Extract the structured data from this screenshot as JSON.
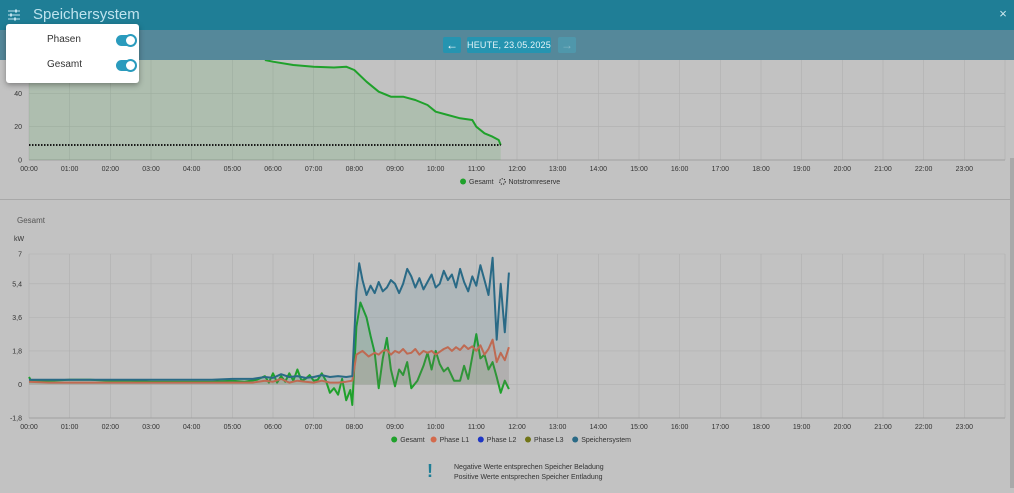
{
  "window": {
    "title": "Speichersystem",
    "close_symbol": "×"
  },
  "nav": {
    "prev_symbol": "←",
    "next_symbol": "→",
    "date_label": "HEUTE, 23.05.2025"
  },
  "popup": {
    "items": [
      {
        "label": "Phasen",
        "checked": true
      },
      {
        "label": "Gesamt",
        "checked": true
      }
    ]
  },
  "colors": {
    "accent": "#1f7e96",
    "gesamt": "#1fa12b",
    "phase_l1": "#d46a4c",
    "phase_l2": "#1d35c4",
    "phase_l3": "#717517",
    "speichersystem": "#2a6a86",
    "toggle": "#2a9bbd"
  },
  "section2": {
    "title": "Gesamt",
    "unit": "kW"
  },
  "info": {
    "icon": "!",
    "line1": "Negative Werte entsprechen Speicher Beladung",
    "line2": "Positive Werte entsprechen Speicher Entladung"
  },
  "chart_data": [
    {
      "type": "area",
      "x_ticks": [
        "00:00",
        "01:00",
        "02:00",
        "03:00",
        "04:00",
        "05:00",
        "06:00",
        "07:00",
        "08:00",
        "09:00",
        "10:00",
        "11:00",
        "12:00",
        "13:00",
        "14:00",
        "15:00",
        "16:00",
        "17:00",
        "18:00",
        "19:00",
        "20:00",
        "21:00",
        "22:00",
        "23:00"
      ],
      "y_ticks": [
        0,
        20,
        40
      ],
      "ylim": [
        0,
        60
      ],
      "grid": true,
      "legend_position": "bottom-center",
      "series": [
        {
          "name": "Gesamt",
          "style": "area-line",
          "points": [
            [
              5.8,
              60
            ],
            [
              6.0,
              59
            ],
            [
              6.5,
              57
            ],
            [
              7.0,
              56
            ],
            [
              7.5,
              55.5
            ],
            [
              7.8,
              56
            ],
            [
              8.0,
              54
            ],
            [
              8.3,
              47
            ],
            [
              8.6,
              41
            ],
            [
              8.9,
              38
            ],
            [
              9.2,
              38
            ],
            [
              9.5,
              36
            ],
            [
              9.8,
              33
            ],
            [
              10.0,
              29
            ],
            [
              10.3,
              27
            ],
            [
              10.6,
              25
            ],
            [
              10.9,
              24
            ],
            [
              11.0,
              20
            ],
            [
              11.2,
              16
            ],
            [
              11.4,
              14
            ],
            [
              11.55,
              12
            ],
            [
              11.6,
              9
            ]
          ]
        },
        {
          "name": "Notstromreserve",
          "style": "dotted",
          "points": [
            [
              0,
              9
            ],
            [
              11.6,
              9
            ]
          ]
        }
      ],
      "area_baseline_fill_from": 0
    },
    {
      "type": "line",
      "x_ticks": [
        "00:00",
        "01:00",
        "02:00",
        "03:00",
        "04:00",
        "05:00",
        "06:00",
        "07:00",
        "08:00",
        "09:00",
        "10:00",
        "11:00",
        "12:00",
        "13:00",
        "14:00",
        "15:00",
        "16:00",
        "17:00",
        "18:00",
        "19:00",
        "20:00",
        "21:00",
        "22:00",
        "23:00"
      ],
      "y_ticks": [
        "-1,8",
        "0",
        "1,8",
        "3,6",
        "5,4",
        "7"
      ],
      "y_tick_values": [
        -1.8,
        0,
        1.8,
        3.6,
        5.4,
        7
      ],
      "ylim": [
        -1.8,
        7
      ],
      "grid": true,
      "legend_position": "bottom-center",
      "series": [
        {
          "name": "Gesamt",
          "points": [
            [
              0,
              0.4
            ],
            [
              0.05,
              0.2
            ],
            [
              0.5,
              0.2
            ],
            [
              1.0,
              0.25
            ],
            [
              1.5,
              0.25
            ],
            [
              2.0,
              0.2
            ],
            [
              2.5,
              0.2
            ],
            [
              3.0,
              0.15
            ],
            [
              3.5,
              0.15
            ],
            [
              4.0,
              0.15
            ],
            [
              4.5,
              0.15
            ],
            [
              5.0,
              0.2
            ],
            [
              5.3,
              0.15
            ],
            [
              5.6,
              0.25
            ],
            [
              5.8,
              0.45
            ],
            [
              5.9,
              0.1
            ],
            [
              6.0,
              0.6
            ],
            [
              6.1,
              0.1
            ],
            [
              6.2,
              0.45
            ],
            [
              6.3,
              0.15
            ],
            [
              6.4,
              0.6
            ],
            [
              6.5,
              0.2
            ],
            [
              6.6,
              0.8
            ],
            [
              6.7,
              0.2
            ],
            [
              6.8,
              0.3
            ],
            [
              6.9,
              0.5
            ],
            [
              7.0,
              0.2
            ],
            [
              7.1,
              0.25
            ],
            [
              7.2,
              0.6
            ],
            [
              7.3,
              0.2
            ],
            [
              7.4,
              -0.45
            ],
            [
              7.5,
              -0.2
            ],
            [
              7.6,
              -0.55
            ],
            [
              7.7,
              0.3
            ],
            [
              7.8,
              -0.85
            ],
            [
              7.9,
              -0.3
            ],
            [
              7.95,
              -1.1
            ],
            [
              8.05,
              3.1
            ],
            [
              8.15,
              4.4
            ],
            [
              8.3,
              3.6
            ],
            [
              8.4,
              2.6
            ],
            [
              8.5,
              1.7
            ],
            [
              8.6,
              -0.2
            ],
            [
              8.7,
              1.4
            ],
            [
              8.8,
              2.5
            ],
            [
              8.9,
              0.8
            ],
            [
              9.0,
              -0.1
            ],
            [
              9.1,
              0.8
            ],
            [
              9.2,
              0.5
            ],
            [
              9.3,
              1.2
            ],
            [
              9.4,
              -0.2
            ],
            [
              9.55,
              0.2
            ],
            [
              9.7,
              1.0
            ],
            [
              9.8,
              1.7
            ],
            [
              9.9,
              0.8
            ],
            [
              10.0,
              1.8
            ],
            [
              10.1,
              1.1
            ],
            [
              10.2,
              0.7
            ],
            [
              10.3,
              0.9
            ],
            [
              10.45,
              0.2
            ],
            [
              10.6,
              0.2
            ],
            [
              10.7,
              1.0
            ],
            [
              10.8,
              0.3
            ],
            [
              10.9,
              1.5
            ],
            [
              11.0,
              2.7
            ],
            [
              11.1,
              1.4
            ],
            [
              11.2,
              1.6
            ],
            [
              11.3,
              0.8
            ],
            [
              11.4,
              1.2
            ],
            [
              11.5,
              0.4
            ],
            [
              11.6,
              -0.45
            ],
            [
              11.7,
              0.2
            ],
            [
              11.8,
              -0.25
            ]
          ]
        },
        {
          "name": "Phase L1",
          "points": [
            [
              0,
              0.15
            ],
            [
              0.5,
              0.1
            ],
            [
              1.0,
              0.1
            ],
            [
              1.5,
              0.1
            ],
            [
              2.0,
              0.1
            ],
            [
              2.5,
              0.1
            ],
            [
              3.0,
              0.1
            ],
            [
              3.5,
              0.1
            ],
            [
              4.0,
              0.1
            ],
            [
              4.5,
              0.1
            ],
            [
              5.0,
              0.1
            ],
            [
              5.5,
              0.1
            ],
            [
              5.8,
              0.2
            ],
            [
              6.0,
              0.15
            ],
            [
              6.2,
              0.3
            ],
            [
              6.4,
              0.1
            ],
            [
              6.6,
              0.2
            ],
            [
              6.8,
              0.15
            ],
            [
              7.0,
              0.1
            ],
            [
              7.2,
              0.2
            ],
            [
              7.4,
              0.1
            ],
            [
              7.6,
              0.1
            ],
            [
              7.8,
              0.15
            ],
            [
              7.95,
              0.2
            ],
            [
              8.05,
              1.6
            ],
            [
              8.2,
              1.8
            ],
            [
              8.35,
              1.5
            ],
            [
              8.5,
              1.7
            ],
            [
              8.6,
              1.6
            ],
            [
              8.7,
              1.8
            ],
            [
              8.8,
              1.85
            ],
            [
              8.9,
              1.6
            ],
            [
              9.0,
              1.8
            ],
            [
              9.1,
              1.7
            ],
            [
              9.2,
              1.9
            ],
            [
              9.3,
              1.65
            ],
            [
              9.4,
              1.7
            ],
            [
              9.5,
              1.9
            ],
            [
              9.6,
              1.6
            ],
            [
              9.7,
              1.8
            ],
            [
              9.8,
              1.7
            ],
            [
              9.9,
              1.8
            ],
            [
              10.0,
              1.6
            ],
            [
              10.1,
              1.75
            ],
            [
              10.2,
              1.9
            ],
            [
              10.3,
              2.0
            ],
            [
              10.4,
              1.8
            ],
            [
              10.5,
              2.0
            ],
            [
              10.6,
              1.85
            ],
            [
              10.7,
              2.1
            ],
            [
              10.8,
              1.9
            ],
            [
              10.9,
              2.05
            ],
            [
              11.0,
              1.8
            ],
            [
              11.1,
              2.1
            ],
            [
              11.2,
              1.6
            ],
            [
              11.3,
              1.9
            ],
            [
              11.4,
              2.4
            ],
            [
              11.5,
              1.2
            ],
            [
              11.6,
              1.7
            ],
            [
              11.7,
              1.3
            ],
            [
              11.8,
              2.0
            ]
          ]
        },
        {
          "name": "Phase L2",
          "points": []
        },
        {
          "name": "Phase L3",
          "points": []
        },
        {
          "name": "Speichersystem",
          "points": [
            [
              0,
              0.25
            ],
            [
              0.5,
              0.25
            ],
            [
              1.0,
              0.25
            ],
            [
              1.5,
              0.25
            ],
            [
              2.0,
              0.25
            ],
            [
              2.5,
              0.25
            ],
            [
              3.0,
              0.25
            ],
            [
              3.5,
              0.25
            ],
            [
              4.0,
              0.25
            ],
            [
              4.5,
              0.25
            ],
            [
              5.0,
              0.3
            ],
            [
              5.5,
              0.3
            ],
            [
              5.8,
              0.4
            ],
            [
              6.0,
              0.35
            ],
            [
              6.2,
              0.55
            ],
            [
              6.4,
              0.4
            ],
            [
              6.6,
              0.45
            ],
            [
              6.8,
              0.35
            ],
            [
              7.0,
              0.4
            ],
            [
              7.2,
              0.5
            ],
            [
              7.4,
              0.4
            ],
            [
              7.6,
              0.45
            ],
            [
              7.8,
              0.4
            ],
            [
              7.95,
              0.45
            ],
            [
              8.05,
              5.0
            ],
            [
              8.12,
              6.5
            ],
            [
              8.2,
              5.6
            ],
            [
              8.3,
              4.8
            ],
            [
              8.4,
              5.3
            ],
            [
              8.5,
              4.9
            ],
            [
              8.6,
              5.5
            ],
            [
              8.7,
              5.0
            ],
            [
              8.8,
              5.2
            ],
            [
              8.9,
              5.6
            ],
            [
              9.0,
              5.4
            ],
            [
              9.1,
              4.9
            ],
            [
              9.2,
              5.4
            ],
            [
              9.3,
              6.2
            ],
            [
              9.4,
              5.8
            ],
            [
              9.5,
              5.2
            ],
            [
              9.6,
              5.7
            ],
            [
              9.7,
              5.1
            ],
            [
              9.8,
              5.5
            ],
            [
              9.9,
              5.9
            ],
            [
              10.0,
              5.2
            ],
            [
              10.1,
              5.4
            ],
            [
              10.2,
              6.1
            ],
            [
              10.3,
              5.6
            ],
            [
              10.4,
              5.9
            ],
            [
              10.5,
              5.2
            ],
            [
              10.6,
              6.2
            ],
            [
              10.7,
              5.5
            ],
            [
              10.8,
              5.0
            ],
            [
              10.9,
              5.8
            ],
            [
              11.0,
              5.3
            ],
            [
              11.1,
              6.4
            ],
            [
              11.2,
              5.6
            ],
            [
              11.3,
              4.8
            ],
            [
              11.4,
              6.8
            ],
            [
              11.5,
              2.4
            ],
            [
              11.6,
              5.4
            ],
            [
              11.7,
              2.8
            ],
            [
              11.8,
              6.0
            ]
          ]
        }
      ]
    }
  ]
}
